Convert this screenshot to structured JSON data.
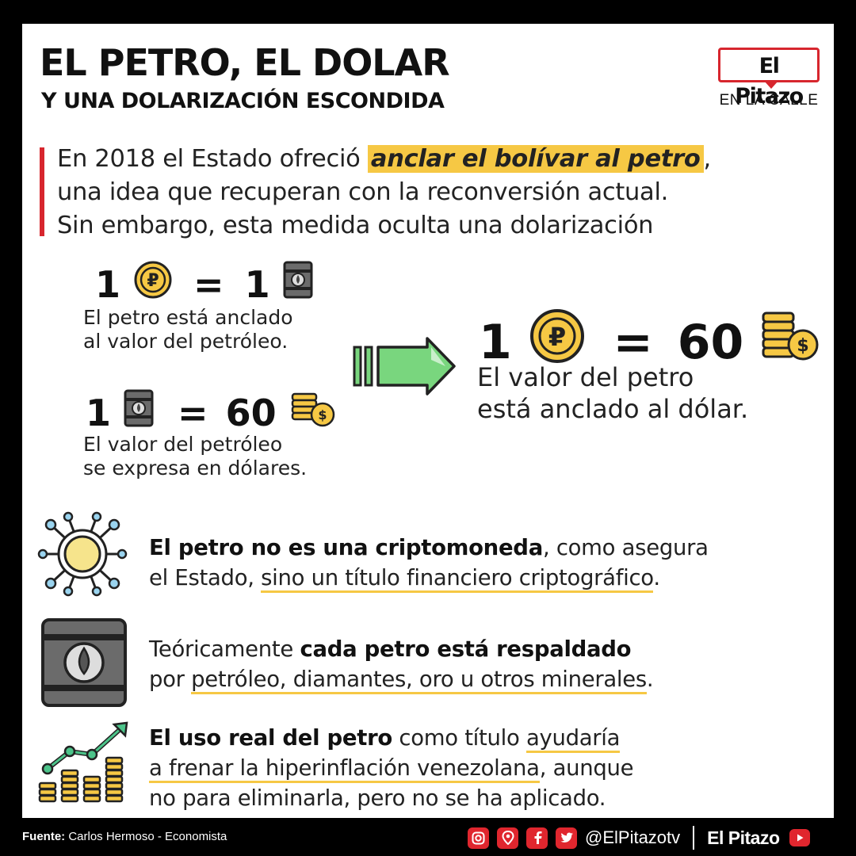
{
  "header": {
    "title_line1": "EL PETRO, EL DOLAR",
    "title_line2": "Y UNA DOLARIZACIÓN ESCONDIDA",
    "logo_text": "El Pitazo",
    "logo_sub": "EN LA CALLE"
  },
  "intro": {
    "line1_pre": "En 2018 el Estado ofreció ",
    "line1_highlight": "anclar el bolívar al petro",
    "line1_post": ",",
    "line2": "una idea que recuperan con la reconversión actual.",
    "line3": "Sin embargo, esta medida oculta una dolarización"
  },
  "equations": {
    "eq1": {
      "left": "1",
      "sign": "=",
      "right": "1",
      "caption1": "El petro está anclado",
      "caption2": "al valor del petróleo."
    },
    "eq2": {
      "left": "1",
      "sign": "=",
      "right": "60",
      "caption1": "El valor del petróleo",
      "caption2": "se expresa en dólares."
    },
    "eq3": {
      "left": "1",
      "sign": "=",
      "right": "60",
      "caption1": "El valor del petro",
      "caption2": "está anclado al dólar."
    }
  },
  "rows": [
    {
      "icon": "crypto-network-icon",
      "line1_bold": "El petro no es una criptomoneda",
      "line1_rest": ", como asegura",
      "line2_pre": "el Estado, ",
      "line2_ul": "sino un título financiero criptográfico",
      "line2_post": "."
    },
    {
      "icon": "oil-barrel-icon",
      "line1_pre": "Teóricamente ",
      "line1_bold": "cada petro está respaldado",
      "line2_pre": "por ",
      "line2_ul": "petróleo, diamantes, oro u otros minerales",
      "line2_post": "."
    },
    {
      "icon": "growth-chart-icon",
      "line1_bold": "El uso real del petro",
      "line1_mid": " como título ",
      "line1_ul": "ayudaría",
      "line2_ul": "a frenar la hiperinflación venezolana",
      "line2_post": ", aunque",
      "line3": "no para eliminarla, pero no se ha aplicado."
    }
  ],
  "footer": {
    "source_label": "Fuente:",
    "source_text": " Carlos Hermoso - Economista",
    "handle": "@ElPitazotv",
    "brand": "El Pitazo"
  },
  "colors": {
    "accent_red": "#d7262e",
    "highlight_yellow": "#f6c844",
    "arrow_green": "#79d67e",
    "coin_gold": "#f6c844",
    "barrel_gray": "#6b6b6b"
  }
}
